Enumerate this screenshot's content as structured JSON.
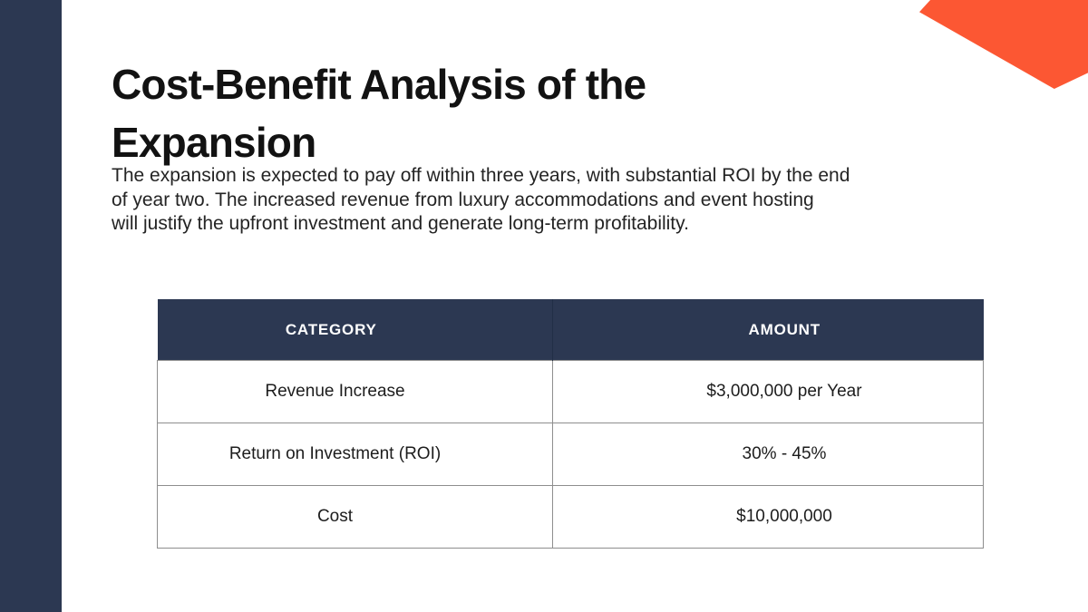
{
  "slide": {
    "title": {
      "lines": [
        "Cost-Benefit Analysis of the",
        "Expansion"
      ]
    },
    "intro": {
      "lines": [
        "The expansion is expected to pay off within three years, with substantial ROI by the end",
        "of year two. The increased revenue from luxury accommodations and event hosting",
        "will justify the upfront investment and generate long-term profitability."
      ]
    },
    "table": {
      "headers": [
        "CATEGORY",
        "AMOUNT"
      ],
      "rows": [
        {
          "category": "Revenue Increase",
          "amount": "$3,000,000 per Year"
        },
        {
          "category": "Return on Investment (ROI)",
          "amount": "30% - 45%"
        },
        {
          "category": "Cost",
          "amount": "$10,000,000"
        }
      ]
    },
    "colors": {
      "navy": "#2C3852",
      "orange": "#FC5733",
      "text_dark": "#1A1A1A",
      "table_border": "#8E8E8E",
      "header_text": "#FFFFFF"
    }
  }
}
